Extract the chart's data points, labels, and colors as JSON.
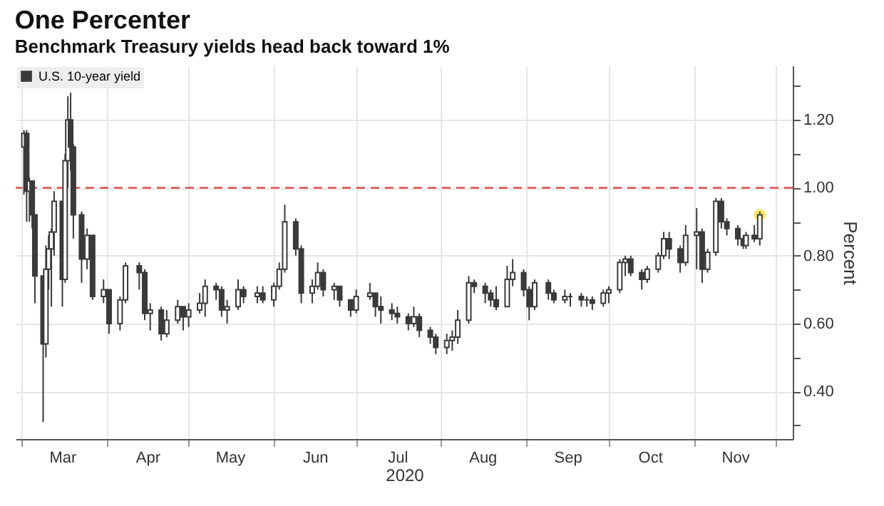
{
  "chart_data": {
    "type": "candlestick",
    "title": "One Percenter",
    "subtitle": "Benchmark Treasury yields head back toward 1%",
    "xlabel": "2020",
    "ylabel": "Percent",
    "x": [
      "2020-03-02",
      "2020-03-03",
      "2020-03-04",
      "2020-03-05",
      "2020-03-06",
      "2020-03-09",
      "2020-03-10",
      "2020-03-11",
      "2020-03-12",
      "2020-03-13",
      "2020-03-16",
      "2020-03-17",
      "2020-03-18",
      "2020-03-19",
      "2020-03-20",
      "2020-03-23",
      "2020-03-25",
      "2020-03-27",
      "2020-03-31",
      "2020-04-02",
      "2020-04-06",
      "2020-04-08",
      "2020-04-13",
      "2020-04-15",
      "2020-04-17",
      "2020-04-21",
      "2020-04-23",
      "2020-04-27",
      "2020-04-29",
      "2020-05-01",
      "2020-05-05",
      "2020-05-07",
      "2020-05-11",
      "2020-05-13",
      "2020-05-15",
      "2020-05-19",
      "2020-05-21",
      "2020-05-26",
      "2020-05-28",
      "2020-06-01",
      "2020-06-03",
      "2020-06-05",
      "2020-06-09",
      "2020-06-11",
      "2020-06-15",
      "2020-06-17",
      "2020-06-19",
      "2020-06-23",
      "2020-06-25",
      "2020-06-29",
      "2020-07-01",
      "2020-07-06",
      "2020-07-08",
      "2020-07-10",
      "2020-07-14",
      "2020-07-16",
      "2020-07-20",
      "2020-07-22",
      "2020-07-24",
      "2020-07-28",
      "2020-07-30",
      "2020-08-03",
      "2020-08-05",
      "2020-08-07",
      "2020-08-11",
      "2020-08-13",
      "2020-08-17",
      "2020-08-19",
      "2020-08-21",
      "2020-08-25",
      "2020-08-27",
      "2020-08-31",
      "2020-09-02",
      "2020-09-04",
      "2020-09-09",
      "2020-09-11",
      "2020-09-15",
      "2020-09-17",
      "2020-09-21",
      "2020-09-23",
      "2020-09-25",
      "2020-09-29",
      "2020-10-01",
      "2020-10-05",
      "2020-10-07",
      "2020-10-09",
      "2020-10-13",
      "2020-10-15",
      "2020-10-19",
      "2020-10-21",
      "2020-10-23",
      "2020-10-27",
      "2020-10-29",
      "2020-11-02",
      "2020-11-04",
      "2020-11-06",
      "2020-11-09",
      "2020-11-11",
      "2020-11-13",
      "2020-11-17",
      "2020-11-19",
      "2020-11-20",
      "2020-11-23",
      "2020-11-25"
    ],
    "xlim": [
      "2020-02-28",
      "2020-12-07"
    ],
    "xticks": [
      {
        "value": "2020-03-01",
        "label": null
      },
      {
        "value": "2020-04-01",
        "label": null
      },
      {
        "value": "2020-05-01",
        "label": null
      },
      {
        "value": "2020-06-01",
        "label": null
      },
      {
        "value": "2020-07-01",
        "label": null
      },
      {
        "value": "2020-08-01",
        "label": null
      },
      {
        "value": "2020-09-01",
        "label": null
      },
      {
        "value": "2020-10-01",
        "label": null
      },
      {
        "value": "2020-11-01",
        "label": null
      },
      {
        "value": "2020-12-01",
        "label": null
      },
      {
        "value": "2020-03-16",
        "label": "Mar"
      },
      {
        "value": "2020-04-16",
        "label": "Apr"
      },
      {
        "value": "2020-05-16",
        "label": "May"
      },
      {
        "value": "2020-06-16",
        "label": "Jun"
      },
      {
        "value": "2020-07-16",
        "label": "Jul"
      },
      {
        "value": "2020-08-16",
        "label": "Aug"
      },
      {
        "value": "2020-09-16",
        "label": "Sep"
      },
      {
        "value": "2020-10-16",
        "label": "Oct"
      },
      {
        "value": "2020-11-16",
        "label": "Nov"
      }
    ],
    "ylim": [
      0.26,
      1.36
    ],
    "yticks": [
      {
        "value": 0.3,
        "label": null
      },
      {
        "value": 0.4,
        "label": "0.40"
      },
      {
        "value": 0.5,
        "label": null
      },
      {
        "value": 0.6,
        "label": "0.60"
      },
      {
        "value": 0.7,
        "label": null
      },
      {
        "value": 0.8,
        "label": "0.80"
      },
      {
        "value": 0.9,
        "label": null
      },
      {
        "value": 1.0,
        "label": "1.00"
      },
      {
        "value": 1.1,
        "label": null
      },
      {
        "value": 1.2,
        "label": "1.20"
      },
      {
        "value": 1.3,
        "label": null
      }
    ],
    "series": [
      {
        "name": "U.S. 10-year yield",
        "type": "candlestick",
        "color": "#3a3a3a",
        "ohlc": [
          [
            1.12,
            1.17,
            0.98,
            1.16
          ],
          [
            1.16,
            1.17,
            0.9,
            0.99
          ],
          [
            0.99,
            1.03,
            0.9,
            1.02
          ],
          [
            1.02,
            1.02,
            0.88,
            0.92
          ],
          [
            0.92,
            0.92,
            0.66,
            0.74
          ],
          [
            0.74,
            0.74,
            0.31,
            0.54
          ],
          [
            0.54,
            0.83,
            0.5,
            0.76
          ],
          [
            0.76,
            0.86,
            0.7,
            0.82
          ],
          [
            0.82,
            0.88,
            0.65,
            0.87
          ],
          [
            0.87,
            0.99,
            0.8,
            0.96
          ],
          [
            0.96,
            0.96,
            0.65,
            0.73
          ],
          [
            0.73,
            1.1,
            0.72,
            1.08
          ],
          [
            1.08,
            1.27,
            1.0,
            1.2
          ],
          [
            1.2,
            1.28,
            1.05,
            1.12
          ],
          [
            1.12,
            1.13,
            0.85,
            0.92
          ],
          [
            0.92,
            0.93,
            0.72,
            0.79
          ],
          [
            0.79,
            0.88,
            0.76,
            0.86
          ],
          [
            0.86,
            0.86,
            0.67,
            0.68
          ],
          [
            0.68,
            0.73,
            0.66,
            0.7
          ],
          [
            0.7,
            0.7,
            0.57,
            0.6
          ],
          [
            0.6,
            0.68,
            0.58,
            0.67
          ],
          [
            0.67,
            0.78,
            0.66,
            0.77
          ],
          [
            0.77,
            0.78,
            0.7,
            0.75
          ],
          [
            0.75,
            0.76,
            0.61,
            0.63
          ],
          [
            0.63,
            0.66,
            0.58,
            0.64
          ],
          [
            0.64,
            0.65,
            0.55,
            0.57
          ],
          [
            0.57,
            0.64,
            0.56,
            0.61
          ],
          [
            0.61,
            0.67,
            0.6,
            0.65
          ],
          [
            0.65,
            0.65,
            0.58,
            0.62
          ],
          [
            0.62,
            0.66,
            0.59,
            0.64
          ],
          [
            0.64,
            0.69,
            0.63,
            0.66
          ],
          [
            0.66,
            0.73,
            0.62,
            0.71
          ],
          [
            0.71,
            0.72,
            0.67,
            0.7
          ],
          [
            0.7,
            0.71,
            0.62,
            0.64
          ],
          [
            0.64,
            0.67,
            0.6,
            0.65
          ],
          [
            0.65,
            0.73,
            0.64,
            0.7
          ],
          [
            0.7,
            0.71,
            0.66,
            0.68
          ],
          [
            0.68,
            0.71,
            0.66,
            0.69
          ],
          [
            0.69,
            0.71,
            0.66,
            0.67
          ],
          [
            0.67,
            0.72,
            0.65,
            0.71
          ],
          [
            0.71,
            0.78,
            0.7,
            0.76
          ],
          [
            0.76,
            0.95,
            0.75,
            0.9
          ],
          [
            0.9,
            0.91,
            0.8,
            0.82
          ],
          [
            0.82,
            0.83,
            0.66,
            0.69
          ],
          [
            0.69,
            0.73,
            0.66,
            0.71
          ],
          [
            0.71,
            0.78,
            0.7,
            0.75
          ],
          [
            0.75,
            0.76,
            0.68,
            0.7
          ],
          [
            0.7,
            0.72,
            0.67,
            0.71
          ],
          [
            0.71,
            0.71,
            0.65,
            0.67
          ],
          [
            0.67,
            0.67,
            0.62,
            0.64
          ],
          [
            0.64,
            0.7,
            0.63,
            0.68
          ],
          [
            0.68,
            0.72,
            0.67,
            0.69
          ],
          [
            0.69,
            0.69,
            0.62,
            0.65
          ],
          [
            0.65,
            0.68,
            0.6,
            0.64
          ],
          [
            0.64,
            0.66,
            0.61,
            0.63
          ],
          [
            0.63,
            0.65,
            0.6,
            0.62
          ],
          [
            0.62,
            0.63,
            0.58,
            0.6
          ],
          [
            0.6,
            0.65,
            0.59,
            0.62
          ],
          [
            0.62,
            0.63,
            0.56,
            0.58
          ],
          [
            0.58,
            0.59,
            0.54,
            0.56
          ],
          [
            0.56,
            0.57,
            0.51,
            0.53
          ],
          [
            0.53,
            0.57,
            0.51,
            0.55
          ],
          [
            0.55,
            0.58,
            0.52,
            0.56
          ],
          [
            0.56,
            0.64,
            0.54,
            0.61
          ],
          [
            0.61,
            0.74,
            0.6,
            0.72
          ],
          [
            0.72,
            0.73,
            0.69,
            0.71
          ],
          [
            0.71,
            0.72,
            0.66,
            0.69
          ],
          [
            0.69,
            0.7,
            0.65,
            0.67
          ],
          [
            0.67,
            0.71,
            0.64,
            0.65
          ],
          [
            0.65,
            0.77,
            0.65,
            0.73
          ],
          [
            0.73,
            0.79,
            0.71,
            0.75
          ],
          [
            0.75,
            0.76,
            0.68,
            0.7
          ],
          [
            0.7,
            0.71,
            0.61,
            0.65
          ],
          [
            0.65,
            0.73,
            0.64,
            0.72
          ],
          [
            0.72,
            0.73,
            0.67,
            0.69
          ],
          [
            0.69,
            0.7,
            0.66,
            0.67
          ],
          [
            0.67,
            0.7,
            0.66,
            0.68
          ],
          [
            0.68,
            0.69,
            0.65,
            0.68
          ],
          [
            0.68,
            0.69,
            0.65,
            0.67
          ],
          [
            0.67,
            0.68,
            0.65,
            0.67
          ],
          [
            0.67,
            0.68,
            0.64,
            0.66
          ],
          [
            0.66,
            0.7,
            0.65,
            0.69
          ],
          [
            0.69,
            0.71,
            0.66,
            0.7
          ],
          [
            0.7,
            0.79,
            0.69,
            0.78
          ],
          [
            0.78,
            0.8,
            0.74,
            0.79
          ],
          [
            0.79,
            0.8,
            0.74,
            0.75
          ],
          [
            0.75,
            0.76,
            0.7,
            0.73
          ],
          [
            0.73,
            0.77,
            0.72,
            0.76
          ],
          [
            0.76,
            0.81,
            0.75,
            0.8
          ],
          [
            0.8,
            0.87,
            0.79,
            0.85
          ],
          [
            0.85,
            0.87,
            0.79,
            0.82
          ],
          [
            0.82,
            0.83,
            0.75,
            0.78
          ],
          [
            0.78,
            0.89,
            0.77,
            0.86
          ],
          [
            0.86,
            0.94,
            0.76,
            0.87
          ],
          [
            0.87,
            0.88,
            0.72,
            0.76
          ],
          [
            0.76,
            0.82,
            0.75,
            0.81
          ],
          [
            0.81,
            0.97,
            0.8,
            0.96
          ],
          [
            0.96,
            0.97,
            0.88,
            0.9
          ],
          [
            0.9,
            0.91,
            0.86,
            0.88
          ],
          [
            0.88,
            0.89,
            0.83,
            0.85
          ],
          [
            0.85,
            0.86,
            0.82,
            0.83
          ],
          [
            0.83,
            0.87,
            0.82,
            0.86
          ],
          [
            0.86,
            0.89,
            0.84,
            0.85
          ],
          [
            0.85,
            0.93,
            0.83,
            0.92
          ]
        ]
      },
      {
        "type": "scatter",
        "color": "#f2e84b",
        "x": [
          "2020-11-25"
        ],
        "values": [
          0.92
        ]
      }
    ],
    "ref_lines": [
      {
        "axis": "y",
        "value": 1.0,
        "color": "#e0504f",
        "line_style": "dashed"
      }
    ],
    "grid": true,
    "legend": "top left"
  }
}
